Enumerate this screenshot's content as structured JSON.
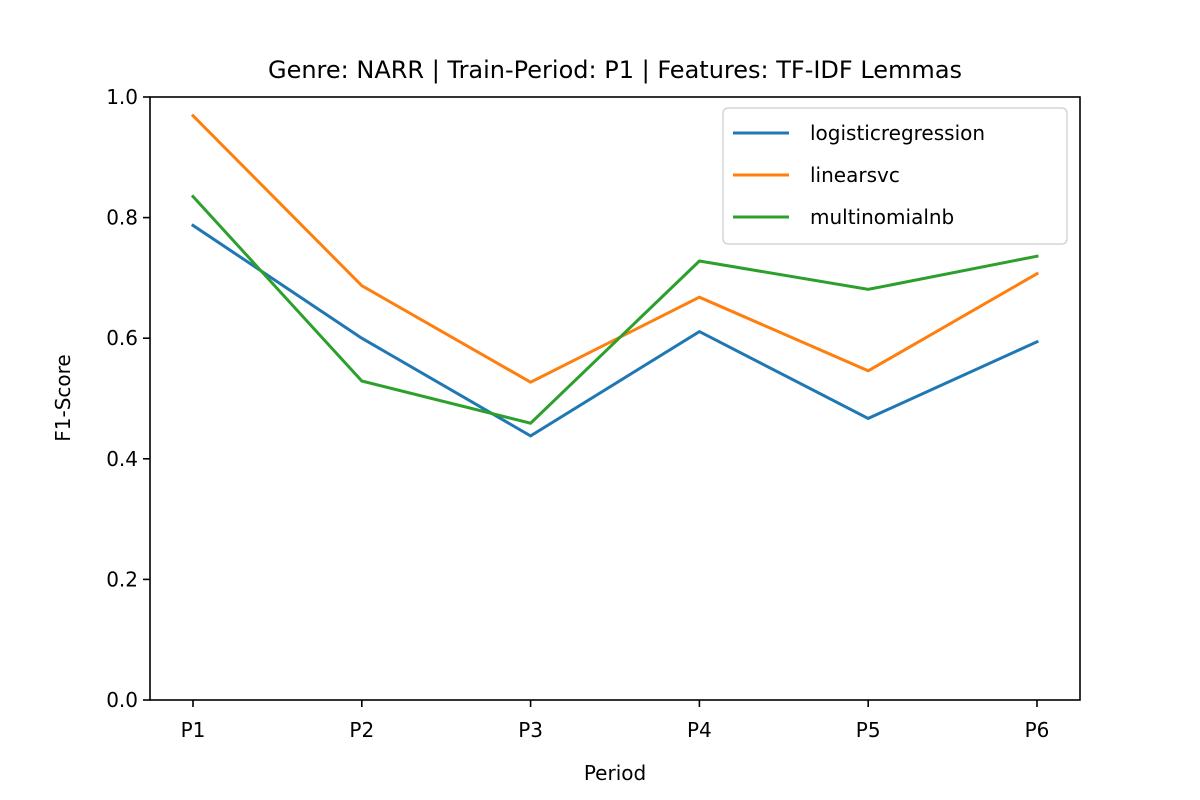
{
  "chart_data": {
    "type": "line",
    "title": "Genre: NARR | Train-Period: P1 | Features: TF-IDF Lemmas",
    "xlabel": "Period",
    "ylabel": "F1-Score",
    "categories": [
      "P1",
      "P2",
      "P3",
      "P4",
      "P5",
      "P6"
    ],
    "ylim": [
      0.0,
      1.0
    ],
    "yticks": [
      "0.0",
      "0.2",
      "0.4",
      "0.6",
      "0.8",
      "1.0"
    ],
    "grid": false,
    "legend_position": "top-right",
    "series": [
      {
        "name": "logisticregression",
        "color": "#1f77b4",
        "values": [
          0.787,
          0.6,
          0.438,
          0.611,
          0.467,
          0.594
        ]
      },
      {
        "name": "linearsvc",
        "color": "#ff7f0e",
        "values": [
          0.969,
          0.687,
          0.527,
          0.668,
          0.546,
          0.707
        ]
      },
      {
        "name": "multinomialnb",
        "color": "#2ca02c",
        "values": [
          0.835,
          0.529,
          0.459,
          0.728,
          0.681,
          0.736
        ]
      }
    ]
  }
}
